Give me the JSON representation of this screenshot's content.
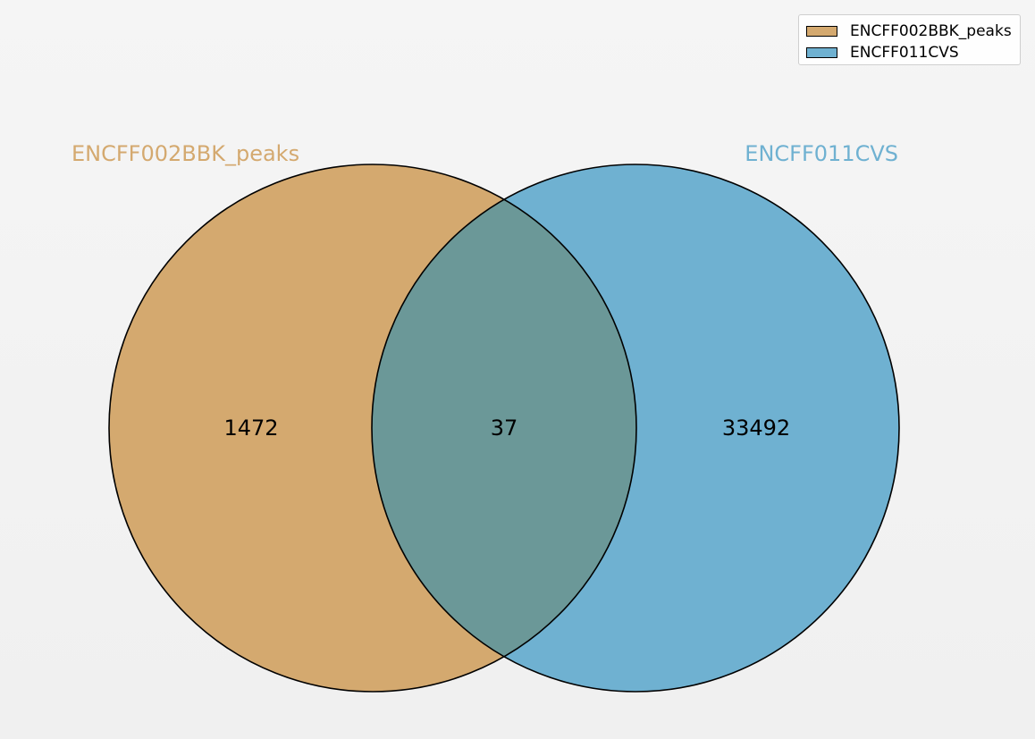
{
  "chart_data": {
    "type": "venn",
    "sets": [
      {
        "name": "ENCFF002BBK_peaks",
        "color": "#d4a96f"
      },
      {
        "name": "ENCFF011CVS",
        "color": "#6fb1d1"
      }
    ],
    "regions": {
      "only_a": 1472,
      "intersection": 37,
      "only_b": 33492
    },
    "overlap_color": "#6b9898",
    "legend": {
      "placement": "top-right",
      "entries": [
        "ENCFF002BBK_peaks",
        "ENCFF011CVS"
      ]
    }
  }
}
